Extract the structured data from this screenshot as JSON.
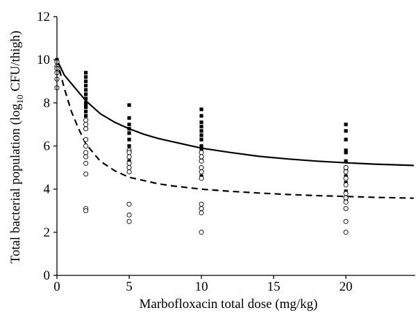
{
  "chart_data": {
    "type": "scatter",
    "title": "",
    "xlabel": "Marbofloxacin total dose (mg/kg)",
    "ylabel": {
      "main": "Total bacterial population (log",
      "sub": "10",
      "unit": " CFU/thigh)"
    },
    "xlim": [
      0,
      24.8
    ],
    "ylim": [
      0,
      12
    ],
    "xticks": [
      0,
      5,
      10,
      15,
      20
    ],
    "yticks": [
      0,
      2,
      4,
      6,
      8,
      10,
      12
    ],
    "grid": false,
    "colors": {
      "axis": "#000000",
      "marker": "#000000",
      "marker_fill_open": "#ffffff"
    },
    "series": [
      {
        "marker": "filled-square",
        "points": [
          [
            0,
            10.0
          ],
          [
            0,
            9.9
          ],
          [
            2,
            9.4
          ],
          [
            2,
            9.2
          ],
          [
            2,
            9.0
          ],
          [
            2,
            8.8
          ],
          [
            2,
            8.6
          ],
          [
            2,
            8.4
          ],
          [
            2,
            8.2
          ],
          [
            2,
            8.0
          ],
          [
            2,
            7.9
          ],
          [
            2,
            7.8
          ],
          [
            2,
            7.6
          ],
          [
            2,
            7.4
          ],
          [
            5,
            7.9
          ],
          [
            5,
            7.3
          ],
          [
            5,
            7.0
          ],
          [
            5,
            6.8
          ],
          [
            5,
            6.6
          ],
          [
            5,
            6.3
          ],
          [
            5,
            6.0
          ],
          [
            5,
            5.8
          ],
          [
            5,
            5.5
          ],
          [
            5,
            5.3
          ],
          [
            10,
            7.7
          ],
          [
            10,
            7.4
          ],
          [
            10,
            7.1
          ],
          [
            10,
            6.9
          ],
          [
            10,
            6.7
          ],
          [
            10,
            6.5
          ],
          [
            10,
            6.3
          ],
          [
            10,
            6.0
          ],
          [
            10,
            5.8
          ],
          [
            10,
            5.4
          ],
          [
            10,
            5.0
          ],
          [
            10,
            4.6
          ],
          [
            20,
            7.0
          ],
          [
            20,
            6.7
          ],
          [
            20,
            6.3
          ],
          [
            20,
            5.8
          ],
          [
            20,
            5.7
          ],
          [
            20,
            5.3
          ],
          [
            20,
            5.0
          ],
          [
            20,
            4.9
          ],
          [
            20,
            4.6
          ],
          [
            20,
            4.3
          ],
          [
            20,
            3.9
          ],
          [
            20,
            3.5
          ]
        ]
      },
      {
        "marker": "open-circle",
        "points": [
          [
            0,
            9.9
          ],
          [
            0,
            9.7
          ],
          [
            0,
            9.6
          ],
          [
            0,
            9.4
          ],
          [
            0,
            9.1
          ],
          [
            0,
            8.7
          ],
          [
            2,
            7.2
          ],
          [
            2,
            7.0
          ],
          [
            2,
            6.8
          ],
          [
            2,
            6.3
          ],
          [
            2,
            6.0
          ],
          [
            2,
            5.7
          ],
          [
            2,
            5.5
          ],
          [
            2,
            5.2
          ],
          [
            2,
            4.7
          ],
          [
            2,
            3.1
          ],
          [
            2,
            3.0
          ],
          [
            5,
            5.8
          ],
          [
            5,
            5.7
          ],
          [
            5,
            5.5
          ],
          [
            5,
            5.2
          ],
          [
            5,
            5.0
          ],
          [
            5,
            4.8
          ],
          [
            5,
            3.3
          ],
          [
            5,
            2.8
          ],
          [
            5,
            2.5
          ],
          [
            10,
            5.7
          ],
          [
            10,
            5.5
          ],
          [
            10,
            5.3
          ],
          [
            10,
            5.0
          ],
          [
            10,
            4.8
          ],
          [
            10,
            4.5
          ],
          [
            10,
            3.3
          ],
          [
            10,
            3.1
          ],
          [
            10,
            2.9
          ],
          [
            10,
            2.0
          ],
          [
            20,
            5.0
          ],
          [
            20,
            4.8
          ],
          [
            20,
            4.5
          ],
          [
            20,
            4.2
          ],
          [
            20,
            3.8
          ],
          [
            20,
            3.6
          ],
          [
            20,
            3.4
          ],
          [
            20,
            3.1
          ],
          [
            20,
            2.5
          ],
          [
            20,
            2.0
          ]
        ]
      },
      {
        "line": "solid",
        "points": [
          [
            0,
            10.0
          ],
          [
            0.5,
            9.3
          ],
          [
            1,
            8.9
          ],
          [
            1.5,
            8.5
          ],
          [
            2,
            8.1
          ],
          [
            3,
            7.5
          ],
          [
            4,
            7.1
          ],
          [
            5,
            6.8
          ],
          [
            6,
            6.55
          ],
          [
            7,
            6.35
          ],
          [
            8,
            6.2
          ],
          [
            9,
            6.05
          ],
          [
            10,
            5.9
          ],
          [
            12,
            5.7
          ],
          [
            14,
            5.52
          ],
          [
            16,
            5.4
          ],
          [
            18,
            5.3
          ],
          [
            20,
            5.22
          ],
          [
            22,
            5.16
          ],
          [
            24.7,
            5.1
          ]
        ]
      },
      {
        "line": "dashed",
        "points": [
          [
            0,
            10.0
          ],
          [
            0.5,
            8.7
          ],
          [
            1,
            7.6
          ],
          [
            1.5,
            6.8
          ],
          [
            2,
            6.1
          ],
          [
            3,
            5.3
          ],
          [
            4,
            4.85
          ],
          [
            5,
            4.55
          ],
          [
            6,
            4.4
          ],
          [
            7,
            4.25
          ],
          [
            8,
            4.15
          ],
          [
            10,
            4.0
          ],
          [
            12,
            3.9
          ],
          [
            14,
            3.82
          ],
          [
            16,
            3.75
          ],
          [
            18,
            3.7
          ],
          [
            20,
            3.66
          ],
          [
            22,
            3.62
          ],
          [
            24.7,
            3.58
          ]
        ]
      }
    ]
  }
}
